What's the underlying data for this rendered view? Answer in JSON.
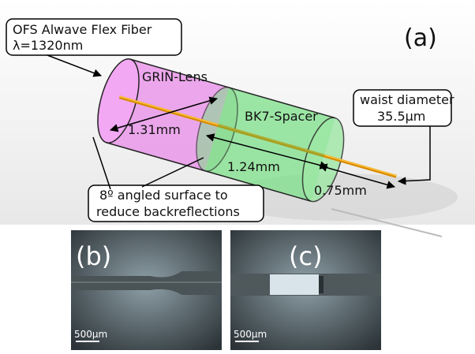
{
  "panel_a": {
    "label": "(a)",
    "fiber_callout": [
      "OFS Alwave Flex Fiber",
      "λ=1320nm"
    ],
    "components": [
      "GRIN-Lens",
      "BK7-Spacer"
    ],
    "waist_callout": [
      "waist diameter",
      "35.5µm"
    ],
    "lengths": [
      "1.31mm",
      "1.24mm",
      "0.75mm"
    ],
    "surface_callout": [
      "8º angled surface to",
      "reduce backreflections"
    ]
  },
  "panel_b": {
    "label": "(b)",
    "scale_bar": "500µm"
  },
  "panel_c": {
    "label": "(c)",
    "scale_bar": "500µm"
  }
}
